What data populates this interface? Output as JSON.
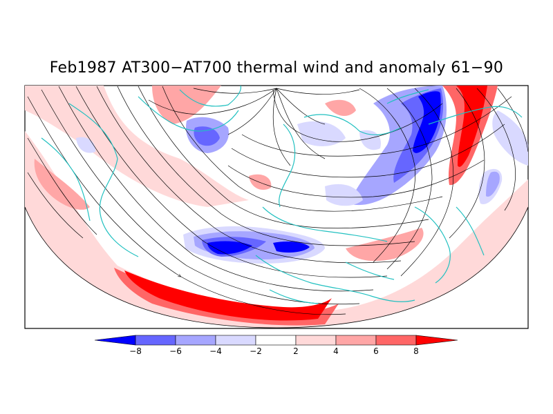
{
  "title": "Feb1987 AT300-AT700 thermal wind and anomaly 61-90",
  "colorbar": {
    "ticks": [
      "-8",
      "-6",
      "-4",
      "-2",
      "2",
      "4",
      "6",
      "8"
    ],
    "colors": [
      "#0000ff",
      "#6666ff",
      "#a6a6ff",
      "#d9d9ff",
      "#ffffff",
      "#ffd9d9",
      "#ffa6a6",
      "#ff6666",
      "#ff0000"
    ]
  },
  "map": {
    "projection": "polar stereographic, northern hemisphere",
    "coastline_color": "#20c0c0",
    "streamline_color": "#000000"
  }
}
